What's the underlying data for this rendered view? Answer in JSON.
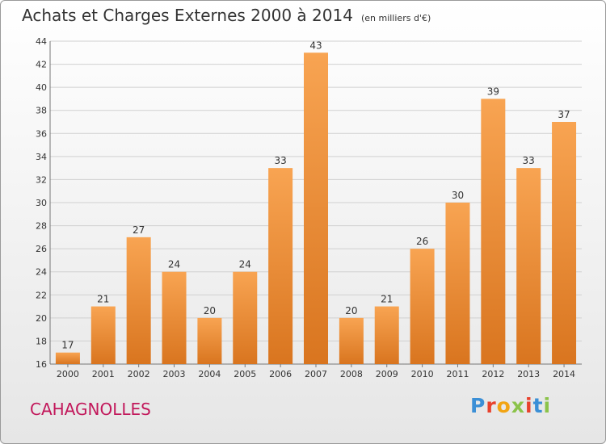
{
  "header": {
    "title": "Achats et Charges Externes 2000 à 2014",
    "unit": "(en milliers d'€)"
  },
  "footer": {
    "commune": "CAHAGNOLLES",
    "brand": "Proxiti"
  },
  "colors": {
    "bar_top": "#f8a452",
    "bar_bottom": "#d9751f",
    "grid": "#d0d0d0",
    "axis_text": "#333333",
    "commune_text": "#c2185b",
    "logo_letters": [
      "#3b8fd6",
      "#e8412c",
      "#f2a413",
      "#8bc34a",
      "#e8412c",
      "#3b8fd6",
      "#8bc34a"
    ]
  },
  "chart_data": {
    "type": "bar",
    "title": "Achats et Charges Externes 2000 à 2014",
    "subtitle": "(en milliers d'€)",
    "xlabel": "",
    "ylabel": "",
    "categories": [
      "2000",
      "2001",
      "2002",
      "2003",
      "2004",
      "2005",
      "2006",
      "2007",
      "2008",
      "2009",
      "2010",
      "2011",
      "2012",
      "2013",
      "2014"
    ],
    "values": [
      17,
      21,
      27,
      24,
      20,
      24,
      33,
      43,
      20,
      21,
      26,
      30,
      39,
      33,
      37
    ],
    "ylim": [
      16,
      44
    ],
    "yticks": [
      16,
      18,
      20,
      22,
      24,
      26,
      28,
      30,
      32,
      34,
      36,
      38,
      40,
      42,
      44
    ],
    "grid": true,
    "legend": "none"
  }
}
